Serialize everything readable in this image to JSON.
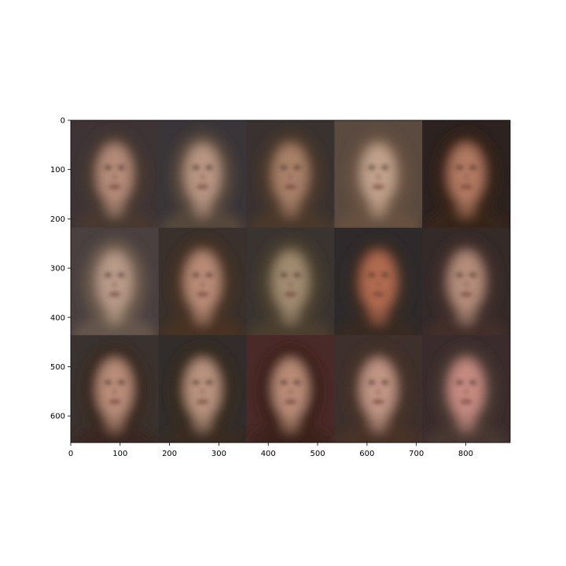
{
  "image": {
    "type": "image-grid",
    "content": "3x5 grid of blurry generated face images",
    "rows": 3,
    "columns": 5,
    "x_extent": [
      0,
      890
    ],
    "y_extent": [
      0,
      654
    ],
    "x_ticks": [
      0,
      100,
      200,
      300,
      400,
      500,
      600,
      700,
      800
    ],
    "y_ticks": [
      0,
      100,
      200,
      300,
      400,
      500,
      600
    ],
    "tiles": [
      {
        "bg": "#3e3436",
        "hair": "#4a3a30",
        "skin": "#b48a78"
      },
      {
        "bg": "#3a3538",
        "hair": "#5a4a3c",
        "skin": "#b89482"
      },
      {
        "bg": "#3a3230",
        "hair": "#4e3a2c",
        "skin": "#a88068"
      },
      {
        "bg": "#5a4a40",
        "hair": "#6a5240",
        "skin": "#c0a08a"
      },
      {
        "bg": "#2c2220",
        "hair": "#3a2418",
        "skin": "#b07860"
      },
      {
        "bg": "#4a4040",
        "hair": "#6a5a4c",
        "skin": "#b89a88"
      },
      {
        "bg": "#3a302c",
        "hair": "#4a3222",
        "skin": "#b88a76"
      },
      {
        "bg": "#3a3430",
        "hair": "#4e4030",
        "skin": "#a08a70"
      },
      {
        "bg": "#2e2a2c",
        "hair": "#3a2a22",
        "skin": "#b06a50"
      },
      {
        "bg": "#342a28",
        "hair": "#44302a",
        "skin": "#b48c7a"
      },
      {
        "bg": "#3a322e",
        "hair": "#3a261c",
        "skin": "#b88c78"
      },
      {
        "bg": "#322c2a",
        "hair": "#3a2a1e",
        "skin": "#b8927e"
      },
      {
        "bg": "#4a2a28",
        "hair": "#3a2014",
        "skin": "#b88a76"
      },
      {
        "bg": "#3e302c",
        "hair": "#4a3426",
        "skin": "#c09484"
      },
      {
        "bg": "#3a2c2c",
        "hair": "#4a3a34",
        "skin": "#c48a80"
      }
    ]
  }
}
